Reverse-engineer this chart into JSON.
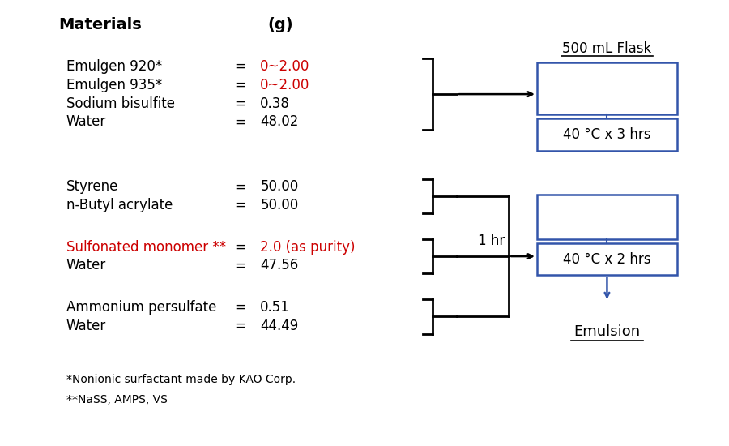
{
  "background_color": "#ffffff",
  "header_materials": "Materials",
  "header_g": "(g)",
  "groups": [
    {
      "items": [
        {
          "name": "Emulgen 920*",
          "eq": "=",
          "value": "0~2.00",
          "value_color": "#cc0000",
          "name_color": "#000000"
        },
        {
          "name": "Emulgen 935*",
          "eq": "=",
          "value": "0~2.00",
          "value_color": "#cc0000",
          "name_color": "#000000"
        },
        {
          "name": "Sodium bisulfite",
          "eq": "=",
          "value": "0.38",
          "value_color": "#000000",
          "name_color": "#000000"
        },
        {
          "name": "Water",
          "eq": "=",
          "value": "48.02",
          "value_color": "#000000",
          "name_color": "#000000"
        }
      ]
    },
    {
      "items": [
        {
          "name": "Styrene",
          "eq": "=",
          "value": "50.00",
          "value_color": "#000000",
          "name_color": "#000000"
        },
        {
          "name": "n-Butyl acrylate",
          "eq": "=",
          "value": "50.00",
          "value_color": "#000000",
          "name_color": "#000000"
        }
      ]
    },
    {
      "items": [
        {
          "name": "Sulfonated monomer **",
          "eq": "=",
          "value": "2.0 (as purity)",
          "value_color": "#cc0000",
          "name_color": "#cc0000"
        },
        {
          "name": "Water",
          "eq": "=",
          "value": "47.56",
          "value_color": "#000000",
          "name_color": "#000000"
        }
      ]
    },
    {
      "items": [
        {
          "name": "Ammonium persulfate",
          "eq": "=",
          "value": "0.51",
          "value_color": "#000000",
          "name_color": "#000000"
        },
        {
          "name": "Water",
          "eq": "=",
          "value": "44.49",
          "value_color": "#000000",
          "name_color": "#000000"
        }
      ]
    }
  ],
  "footnotes": [
    "*Nonionic surfactant made by KAO Corp.",
    "**NaSS, AMPS, VS"
  ],
  "flask_label": "500 mL Flask",
  "emulsion_label": "Emulsion",
  "one_hr_label": "1 hr",
  "arrow_color": "#3355aa",
  "line_color": "#000000",
  "box_color": "#3355aa"
}
